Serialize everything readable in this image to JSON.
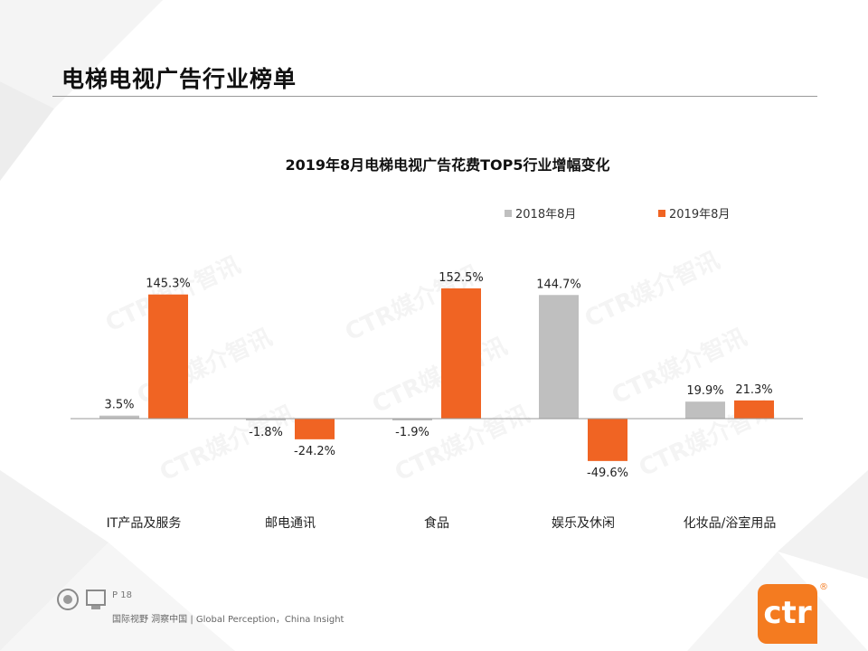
{
  "page": {
    "title": "电梯电视广告行业榜单",
    "page_number": "P 18",
    "tagline": "国际视野  洞察中国 | Global Perception，China Insight",
    "watermark": "CTR媒介智讯",
    "logo_text": "ctr",
    "logo_mark": "®"
  },
  "colors": {
    "series_2018": "#bfbfbf",
    "series_2019": "#f06423",
    "brand": "#f47b20"
  },
  "chart_data": {
    "type": "bar",
    "title": "2019年8月电梯电视广告花费TOP5行业增幅变化",
    "categories": [
      "IT产品及服务",
      "邮电通讯",
      "食品",
      "娱乐及休闲",
      "化妆品/浴室用品"
    ],
    "series": [
      {
        "name": "2018年8月",
        "values": [
          3.5,
          -1.8,
          -1.9,
          144.7,
          19.9
        ],
        "labels": [
          "3.5%",
          "-1.8%",
          "-1.9%",
          "144.7%",
          "19.9%"
        ]
      },
      {
        "name": "2019年8月",
        "values": [
          145.3,
          -24.2,
          152.5,
          -49.6,
          21.3
        ],
        "labels": [
          "145.3%",
          "-24.2%",
          "152.5%",
          "-49.6%",
          "21.3%"
        ]
      }
    ],
    "ylim": [
      -60,
      160
    ],
    "legend": "top-right",
    "grid": false,
    "xlabel": "",
    "ylabel": ""
  }
}
